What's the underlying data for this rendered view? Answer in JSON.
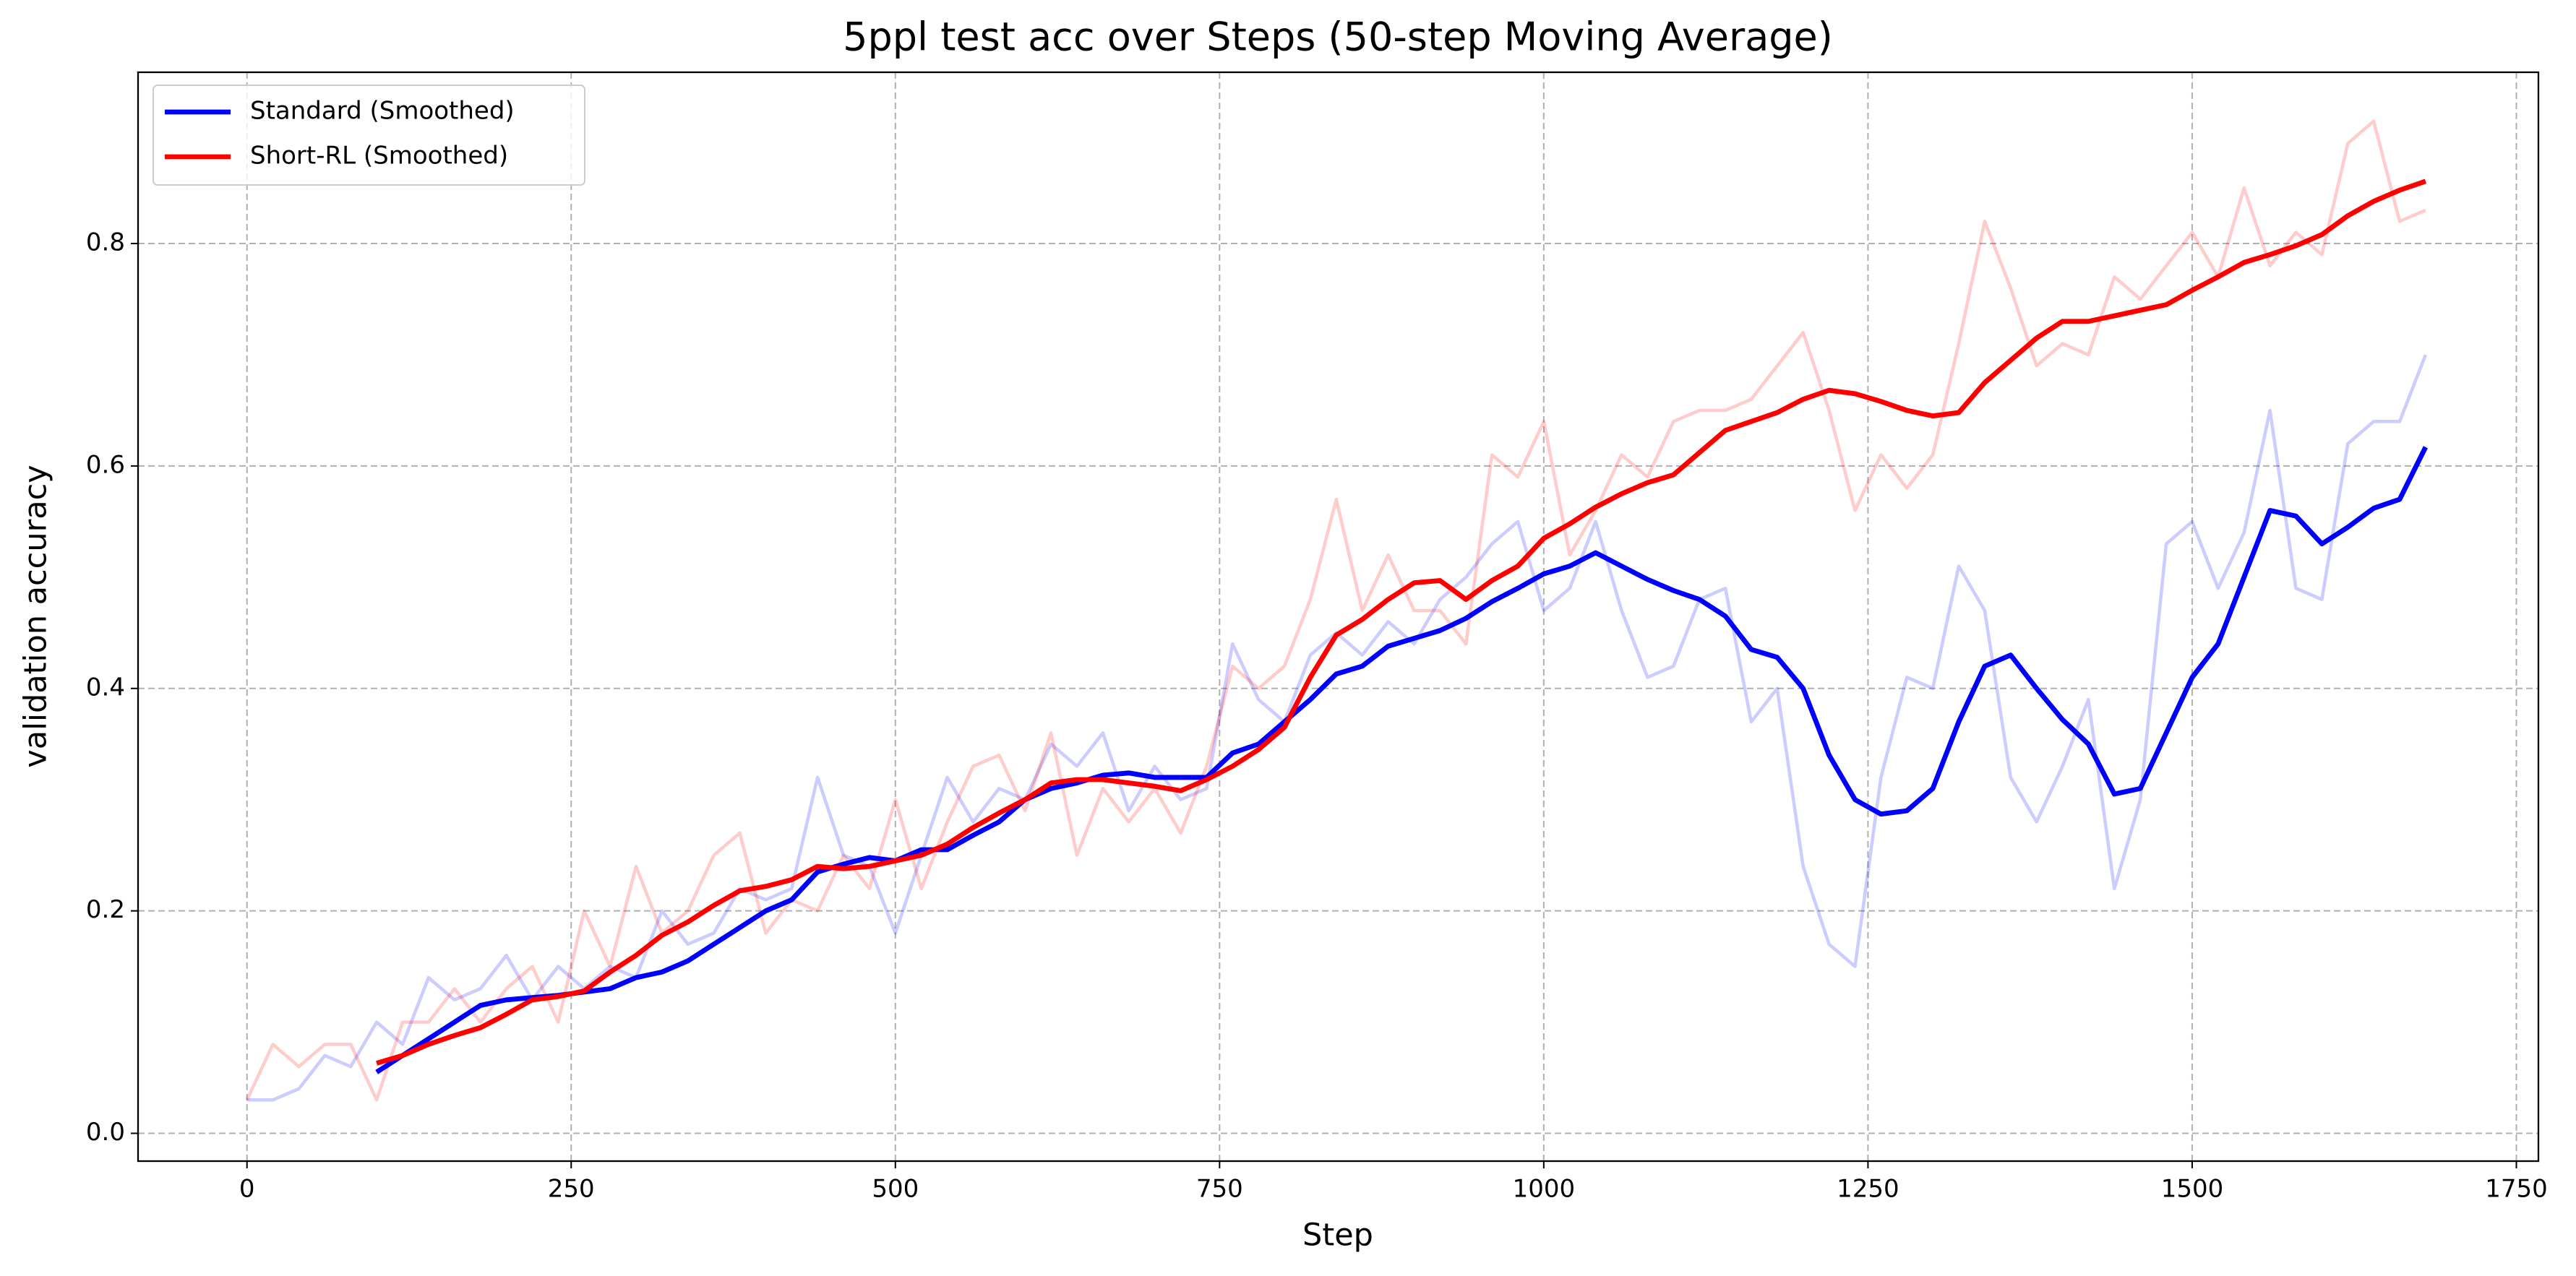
{
  "chart_data": {
    "type": "line",
    "title": "5ppl test acc over Steps (50-step Moving Average)",
    "x_label": "Step",
    "y_label": "validation accuracy",
    "x": [
      0,
      20,
      40,
      60,
      80,
      100,
      120,
      140,
      160,
      180,
      200,
      220,
      240,
      260,
      280,
      300,
      320,
      340,
      360,
      380,
      400,
      420,
      440,
      460,
      480,
      500,
      520,
      540,
      560,
      580,
      600,
      620,
      640,
      660,
      680,
      700,
      720,
      740,
      760,
      780,
      800,
      820,
      840,
      860,
      880,
      900,
      920,
      940,
      960,
      980,
      1000,
      1020,
      1040,
      1060,
      1080,
      1100,
      1120,
      1140,
      1160,
      1180,
      1200,
      1220,
      1240,
      1260,
      1280,
      1300,
      1320,
      1340,
      1360,
      1380,
      1400,
      1420,
      1440,
      1460,
      1480,
      1500,
      1520,
      1540,
      1560,
      1580,
      1600,
      1620,
      1640,
      1660,
      1680
    ],
    "series": [
      {
        "color": "#0000ff",
        "opacity": 0.2,
        "width": 2,
        "values": [
          0.03,
          0.03,
          0.04,
          0.07,
          0.06,
          0.1,
          0.08,
          0.14,
          0.12,
          0.13,
          0.16,
          0.12,
          0.15,
          0.13,
          0.15,
          0.14,
          0.2,
          0.17,
          0.18,
          0.22,
          0.21,
          0.22,
          0.32,
          0.25,
          0.24,
          0.18,
          0.25,
          0.32,
          0.28,
          0.31,
          0.3,
          0.35,
          0.33,
          0.36,
          0.29,
          0.33,
          0.3,
          0.31,
          0.44,
          0.39,
          0.37,
          0.43,
          0.45,
          0.43,
          0.46,
          0.44,
          0.48,
          0.5,
          0.53,
          0.55,
          0.47,
          0.49,
          0.55,
          0.47,
          0.41,
          0.42,
          0.48,
          0.49,
          0.37,
          0.4,
          0.24,
          0.17,
          0.15,
          0.32,
          0.41,
          0.4,
          0.51,
          0.47,
          0.32,
          0.28,
          0.33,
          0.39,
          0.22,
          0.3,
          0.53,
          0.55,
          0.49,
          0.54,
          0.65,
          0.49,
          0.48,
          0.62,
          0.64,
          0.64,
          0.7
        ]
      },
      {
        "color": "#ff0000",
        "opacity": 0.2,
        "width": 2,
        "values": [
          0.03,
          0.08,
          0.06,
          0.08,
          0.08,
          0.03,
          0.1,
          0.1,
          0.13,
          0.1,
          0.13,
          0.15,
          0.1,
          0.2,
          0.15,
          0.24,
          0.18,
          0.2,
          0.25,
          0.27,
          0.18,
          0.21,
          0.2,
          0.25,
          0.22,
          0.3,
          0.22,
          0.28,
          0.33,
          0.34,
          0.29,
          0.36,
          0.25,
          0.31,
          0.28,
          0.31,
          0.27,
          0.33,
          0.42,
          0.4,
          0.42,
          0.48,
          0.57,
          0.47,
          0.52,
          0.47,
          0.47,
          0.44,
          0.61,
          0.59,
          0.64,
          0.52,
          0.56,
          0.61,
          0.59,
          0.64,
          0.65,
          0.65,
          0.66,
          0.69,
          0.72,
          0.65,
          0.56,
          0.61,
          0.58,
          0.61,
          0.71,
          0.82,
          0.76,
          0.69,
          0.71,
          0.7,
          0.77,
          0.75,
          0.78,
          0.81,
          0.77,
          0.85,
          0.78,
          0.81,
          0.79,
          0.89,
          0.91,
          0.82,
          0.83
        ]
      },
      {
        "name": "Standard (Smoothed)",
        "color": "#0000ff",
        "opacity": 1,
        "width": 3,
        "values": [
          null,
          null,
          null,
          null,
          null,
          0.055,
          0.07,
          0.085,
          0.1,
          0.115,
          0.12,
          0.122,
          0.124,
          0.127,
          0.13,
          0.14,
          0.145,
          0.155,
          0.17,
          0.185,
          0.2,
          0.21,
          0.235,
          0.242,
          0.248,
          0.245,
          0.255,
          0.255,
          0.268,
          0.28,
          0.3,
          0.31,
          0.315,
          0.322,
          0.324,
          0.32,
          0.32,
          0.32,
          0.342,
          0.35,
          0.37,
          0.39,
          0.413,
          0.42,
          0.438,
          0.445,
          0.452,
          0.463,
          0.478,
          0.49,
          0.503,
          0.51,
          0.522,
          0.51,
          0.498,
          0.488,
          0.48,
          0.465,
          0.435,
          0.428,
          0.4,
          0.34,
          0.3,
          0.287,
          0.29,
          0.31,
          0.37,
          0.42,
          0.43,
          0.4,
          0.372,
          0.35,
          0.305,
          0.31,
          0.36,
          0.41,
          0.44,
          0.5,
          0.56,
          0.555,
          0.53,
          0.545,
          0.562,
          0.57,
          0.617
        ]
      },
      {
        "name": "Short-RL (Smoothed)",
        "color": "#ff0000",
        "opacity": 1,
        "width": 3,
        "values": [
          null,
          null,
          null,
          null,
          null,
          0.063,
          0.07,
          0.08,
          0.088,
          0.095,
          0.107,
          0.12,
          0.123,
          0.128,
          0.145,
          0.16,
          0.178,
          0.19,
          0.205,
          0.218,
          0.222,
          0.228,
          0.24,
          0.238,
          0.24,
          0.245,
          0.25,
          0.26,
          0.275,
          0.288,
          0.3,
          0.315,
          0.318,
          0.318,
          0.315,
          0.312,
          0.308,
          0.318,
          0.33,
          0.345,
          0.365,
          0.41,
          0.448,
          0.462,
          0.48,
          0.495,
          0.497,
          0.48,
          0.497,
          0.51,
          0.535,
          0.548,
          0.563,
          0.575,
          0.585,
          0.592,
          0.612,
          0.632,
          0.64,
          0.648,
          0.66,
          0.668,
          0.665,
          0.658,
          0.65,
          0.645,
          0.648,
          0.675,
          0.695,
          0.715,
          0.73,
          0.73,
          0.735,
          0.74,
          0.745,
          0.758,
          0.77,
          0.783,
          0.79,
          0.798,
          0.808,
          0.825,
          0.838,
          0.848,
          0.856
        ]
      }
    ],
    "xlim": [
      -84,
      1767
    ],
    "xticks": [
      0,
      250,
      500,
      750,
      1000,
      1250,
      1500,
      1750
    ],
    "ylim": [
      -0.025,
      0.954
    ],
    "yticks": [
      {
        "value": 0,
        "label": "0.0"
      },
      0.2,
      0.4,
      0.6,
      0.8
    ],
    "grid": true,
    "legend": "upper left"
  }
}
